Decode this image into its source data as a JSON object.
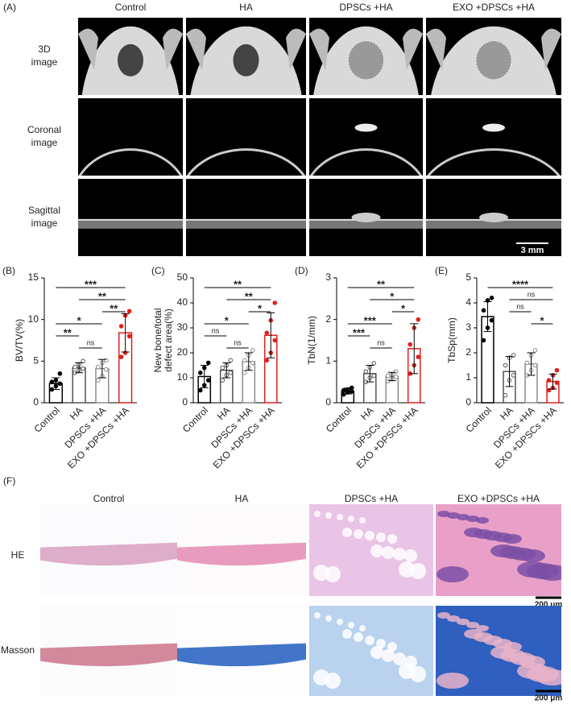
{
  "panel_a": {
    "label": "(A)",
    "columns": [
      "Control",
      "HA",
      "DPSCs +HA",
      "EXO +DPSCs +HA"
    ],
    "rows": [
      [
        "3D",
        "image"
      ],
      [
        "Coronal",
        "image"
      ],
      [
        "Sagittal",
        "image"
      ]
    ],
    "scale_bar": "3 mm"
  },
  "chart_data": [
    {
      "type": "bar",
      "label": "(B)",
      "ylabel": [
        "BV/TV(%)"
      ],
      "categories": [
        "Control",
        "HA",
        "DPSCs +HA",
        "EXO +DPSCs +HA"
      ],
      "colors": [
        "#000000",
        "#555555",
        "#8c8c8c",
        "#e0201b"
      ],
      "values": [
        2.3,
        4.2,
        4.1,
        8.4
      ],
      "errors": [
        0.7,
        0.6,
        1.1,
        2.3
      ],
      "points": [
        [
          1.6,
          2.0,
          2.3,
          2.5,
          2.7,
          3.5
        ],
        [
          3.6,
          3.9,
          4.1,
          4.3,
          4.6,
          5.0
        ],
        [
          2.7,
          3.2,
          4.0,
          4.3,
          4.8,
          5.1
        ],
        [
          5.5,
          6.0,
          8.0,
          9.2,
          10.5,
          11.0
        ]
      ],
      "ylim": [
        0,
        15
      ],
      "yticks": [
        0,
        5,
        10,
        15
      ],
      "comparisons": [
        {
          "between": [
            "Control",
            "EXO +DPSCs +HA"
          ],
          "label": "***"
        },
        {
          "between": [
            "HA",
            "EXO +DPSCs +HA"
          ],
          "label": "**"
        },
        {
          "between": [
            "DPSCs +HA",
            "EXO +DPSCs +HA"
          ],
          "label": "**"
        },
        {
          "between": [
            "Control",
            "DPSCs +HA"
          ],
          "label": "*"
        },
        {
          "between": [
            "Control",
            "HA"
          ],
          "label": "**"
        },
        {
          "between": [
            "HA",
            "DPSCs +HA"
          ],
          "label": "ns"
        }
      ]
    },
    {
      "type": "bar",
      "label": "(C)",
      "ylabel": [
        "New bone/total",
        "defect area(%)"
      ],
      "categories": [
        "Control",
        "HA",
        "DPSCs +HA",
        "EXO +DPSCs +HA"
      ],
      "colors": [
        "#000000",
        "#555555",
        "#8c8c8c",
        "#e0201b"
      ],
      "values": [
        10.5,
        13,
        16.5,
        27
      ],
      "errors": [
        4.5,
        3,
        3.5,
        9
      ],
      "points": [
        [
          5,
          7,
          9,
          12,
          14,
          16
        ],
        [
          9,
          11,
          12,
          14,
          15,
          17
        ],
        [
          12,
          14,
          16,
          17,
          19,
          21
        ],
        [
          17,
          20,
          25,
          28,
          33,
          40
        ]
      ],
      "ylim": [
        0,
        50
      ],
      "yticks": [
        0,
        10,
        20,
        30,
        40,
        50
      ],
      "comparisons": [
        {
          "between": [
            "Control",
            "EXO +DPSCs +HA"
          ],
          "label": "**"
        },
        {
          "between": [
            "HA",
            "EXO +DPSCs +HA"
          ],
          "label": "**"
        },
        {
          "between": [
            "DPSCs +HA",
            "EXO +DPSCs +HA"
          ],
          "label": "*"
        },
        {
          "between": [
            "Control",
            "DPSCs +HA"
          ],
          "label": "*"
        },
        {
          "between": [
            "Control",
            "HA"
          ],
          "label": "ns"
        },
        {
          "between": [
            "HA",
            "DPSCs +HA"
          ],
          "label": "ns"
        }
      ]
    },
    {
      "type": "bar",
      "label": "(D)",
      "ylabel": [
        "TbN(1/mm)"
      ],
      "categories": [
        "Control",
        "HA",
        "DPSCs +HA",
        "EXO +DPSCs +HA"
      ],
      "colors": [
        "#000000",
        "#555555",
        "#8c8c8c",
        "#e0201b"
      ],
      "values": [
        0.28,
        0.7,
        0.63,
        1.3
      ],
      "errors": [
        0.07,
        0.2,
        0.1,
        0.6
      ],
      "points": [
        [
          0.2,
          0.25,
          0.27,
          0.3,
          0.32,
          0.36
        ],
        [
          0.5,
          0.6,
          0.65,
          0.75,
          0.85,
          0.95
        ],
        [
          0.52,
          0.58,
          0.62,
          0.65,
          0.68,
          0.75
        ],
        [
          0.7,
          0.9,
          1.1,
          1.4,
          1.8,
          2.0
        ]
      ],
      "ylim": [
        0,
        3
      ],
      "yticks": [
        0,
        1,
        2,
        3
      ],
      "comparisons": [
        {
          "between": [
            "Control",
            "EXO +DPSCs +HA"
          ],
          "label": "**"
        },
        {
          "between": [
            "HA",
            "EXO +DPSCs +HA"
          ],
          "label": "*"
        },
        {
          "between": [
            "DPSCs +HA",
            "EXO +DPSCs +HA"
          ],
          "label": "*"
        },
        {
          "between": [
            "Control",
            "DPSCs +HA"
          ],
          "label": "***"
        },
        {
          "between": [
            "Control",
            "HA"
          ],
          "label": "***"
        },
        {
          "between": [
            "HA",
            "DPSCs +HA"
          ],
          "label": "ns"
        }
      ]
    },
    {
      "type": "bar",
      "label": "(E)",
      "ylabel": [
        "TbSp(mm)"
      ],
      "categories": [
        "Control",
        "HA",
        "DPSCs +HA",
        "EXO +DPSCs +HA"
      ],
      "colors": [
        "#000000",
        "#555555",
        "#8c8c8c",
        "#e0201b"
      ],
      "values": [
        3.45,
        1.25,
        1.55,
        0.85
      ],
      "errors": [
        0.6,
        0.6,
        0.45,
        0.3
      ],
      "points": [
        [
          2.5,
          3.0,
          3.3,
          3.7,
          4.1,
          4.2
        ],
        [
          0.3,
          0.9,
          1.1,
          1.5,
          1.8,
          1.9
        ],
        [
          1.1,
          1.3,
          1.5,
          1.6,
          1.9,
          2.1
        ],
        [
          0.5,
          0.6,
          0.8,
          0.9,
          1.1,
          1.3
        ]
      ],
      "ylim": [
        0,
        5
      ],
      "yticks": [
        0,
        1,
        2,
        3,
        4,
        5
      ],
      "comparisons": [
        {
          "between": [
            "Control",
            "EXO +DPSCs +HA"
          ],
          "label": "****"
        },
        {
          "between": [
            "HA",
            "EXO +DPSCs +HA"
          ],
          "label": "ns"
        },
        {
          "between": [
            "HA",
            "DPSCs +HA"
          ],
          "label": "ns"
        },
        {
          "between": [
            "DPSCs +HA",
            "EXO +DPSCs +HA"
          ],
          "label": "*"
        }
      ]
    }
  ],
  "panel_f": {
    "label": "(F)",
    "columns": [
      "Control",
      "HA",
      "DPSCs +HA",
      "EXO +DPSCs +HA"
    ],
    "rows": [
      "HE",
      "Masson"
    ],
    "scale_bars": [
      "200 μm",
      "200 μm"
    ]
  }
}
